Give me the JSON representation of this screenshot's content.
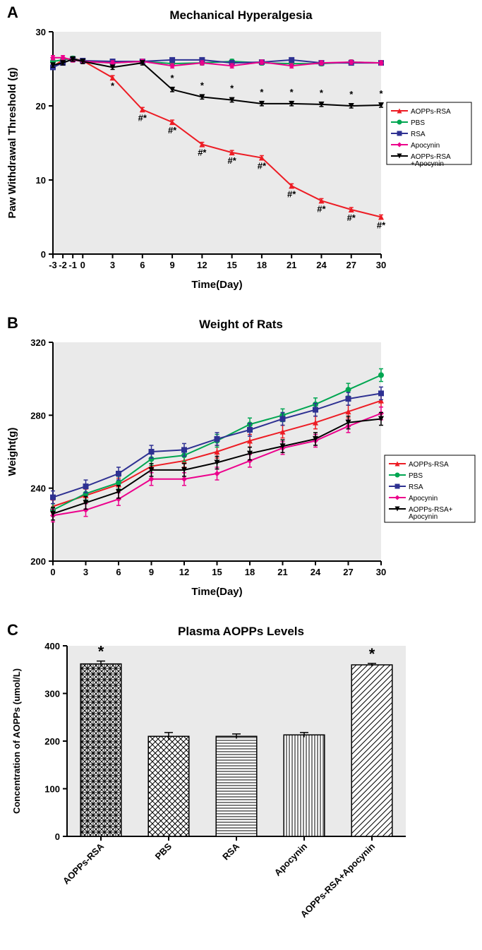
{
  "charts": {
    "A": {
      "label": "A",
      "title": "Mechanical Hyperalgesia",
      "type": "line",
      "xlabel": "Time(Day)",
      "ylabel": "Paw Withdrawal Threshold (g)",
      "xlim": [
        -3,
        30
      ],
      "ylim": [
        0,
        30
      ],
      "xticks": [
        -3,
        -2,
        -1,
        0,
        3,
        6,
        9,
        12,
        15,
        18,
        21,
        24,
        27,
        30
      ],
      "yticks": [
        0,
        10,
        20,
        30
      ],
      "background": "#eaeaea",
      "font_family": "Arial",
      "title_fontsize": 17,
      "label_fontsize": 14,
      "tick_fontsize": 13,
      "series": [
        {
          "name": "AOPPs-RSA",
          "color": "#ed1c24",
          "marker": "triangle",
          "data": [
            [
              -3,
              25.3
            ],
            [
              -2,
              26.2
            ],
            [
              -1,
              26.4
            ],
            [
              0,
              26.1
            ],
            [
              3,
              23.8
            ],
            [
              6,
              19.5
            ],
            [
              9,
              17.8
            ],
            [
              12,
              14.8
            ],
            [
              15,
              13.7
            ],
            [
              18,
              13.0
            ],
            [
              21,
              9.2
            ],
            [
              24,
              7.2
            ],
            [
              27,
              6.0
            ],
            [
              30,
              5.0
            ]
          ],
          "annot": [
            "",
            "",
            "",
            "",
            "*",
            "#*",
            "#*",
            "#*",
            "#*",
            "#*",
            "#*",
            "#*",
            "#*",
            "#*"
          ]
        },
        {
          "name": "PBS",
          "color": "#00a651",
          "marker": "circle",
          "data": [
            [
              -3,
              26.0
            ],
            [
              -2,
              26.2
            ],
            [
              -1,
              26.4
            ],
            [
              0,
              26.0
            ],
            [
              3,
              25.8
            ],
            [
              6,
              26.0
            ],
            [
              9,
              25.7
            ],
            [
              12,
              25.8
            ],
            [
              15,
              26.0
            ],
            [
              18,
              25.8
            ],
            [
              21,
              25.7
            ],
            [
              24,
              25.7
            ],
            [
              27,
              25.9
            ],
            [
              30,
              25.8
            ]
          ]
        },
        {
          "name": "RSA",
          "color": "#2e3192",
          "marker": "square",
          "data": [
            [
              -3,
              25.2
            ],
            [
              -2,
              25.8
            ],
            [
              -1,
              26.3
            ],
            [
              0,
              26.1
            ],
            [
              3,
              26.0
            ],
            [
              6,
              26.0
            ],
            [
              9,
              26.2
            ],
            [
              12,
              26.2
            ],
            [
              15,
              25.8
            ],
            [
              18,
              25.9
            ],
            [
              21,
              26.2
            ],
            [
              24,
              25.8
            ],
            [
              27,
              25.8
            ],
            [
              30,
              25.8
            ]
          ]
        },
        {
          "name": "Apocynin",
          "color": "#ec008c",
          "marker": "diamond",
          "data": [
            [
              -3,
              26.5
            ],
            [
              -2,
              26.5
            ],
            [
              -1,
              26.2
            ],
            [
              0,
              26.0
            ],
            [
              3,
              25.8
            ],
            [
              6,
              26.0
            ],
            [
              9,
              25.4
            ],
            [
              12,
              25.8
            ],
            [
              15,
              25.4
            ],
            [
              18,
              25.9
            ],
            [
              21,
              25.4
            ],
            [
              24,
              25.8
            ],
            [
              27,
              25.9
            ],
            [
              30,
              25.8
            ]
          ]
        },
        {
          "name": "AOPPs-RSA+Apocynin",
          "color": "#000000",
          "marker": "triangle-down",
          "data": [
            [
              -3,
              25.5
            ],
            [
              -2,
              25.8
            ],
            [
              -1,
              26.3
            ],
            [
              0,
              26.0
            ],
            [
              3,
              25.2
            ],
            [
              6,
              25.8
            ],
            [
              9,
              22.2
            ],
            [
              12,
              21.2
            ],
            [
              15,
              20.8
            ],
            [
              18,
              20.3
            ],
            [
              21,
              20.3
            ],
            [
              24,
              20.2
            ],
            [
              27,
              20.0
            ],
            [
              30,
              20.1
            ]
          ],
          "annot": [
            "",
            "",
            "",
            "",
            "",
            "",
            "*",
            "*",
            "*",
            "*",
            "*",
            "*",
            "*",
            "*"
          ]
        }
      ],
      "legend_pos": "right"
    },
    "B": {
      "label": "B",
      "title": "Weight of Rats",
      "type": "line",
      "xlabel": "Time(Day)",
      "ylabel": "Weight(g)",
      "xlim": [
        0,
        30
      ],
      "ylim": [
        200,
        320
      ],
      "xticks": [
        0,
        3,
        6,
        9,
        12,
        15,
        18,
        21,
        24,
        27,
        30
      ],
      "yticks": [
        200,
        240,
        280,
        320
      ],
      "background": "#eaeaea",
      "series": [
        {
          "name": "AOPPs-RSA",
          "color": "#ed1c24",
          "marker": "triangle",
          "data": [
            [
              0,
              230
            ],
            [
              3,
              236
            ],
            [
              6,
              242
            ],
            [
              9,
              252
            ],
            [
              12,
              255
            ],
            [
              15,
              260
            ],
            [
              18,
              266
            ],
            [
              21,
              271
            ],
            [
              24,
              276
            ],
            [
              27,
              282
            ],
            [
              30,
              288
            ]
          ]
        },
        {
          "name": "PBS",
          "color": "#00a651",
          "marker": "circle",
          "data": [
            [
              0,
              228
            ],
            [
              3,
              237
            ],
            [
              6,
              243
            ],
            [
              9,
              256
            ],
            [
              12,
              258
            ],
            [
              15,
              266
            ],
            [
              18,
              275
            ],
            [
              21,
              280
            ],
            [
              24,
              286
            ],
            [
              27,
              294
            ],
            [
              30,
              302
            ]
          ]
        },
        {
          "name": "RSA",
          "color": "#2e3192",
          "marker": "square",
          "data": [
            [
              0,
              235
            ],
            [
              3,
              241
            ],
            [
              6,
              248
            ],
            [
              9,
              260
            ],
            [
              12,
              261
            ],
            [
              15,
              267
            ],
            [
              18,
              272
            ],
            [
              21,
              278
            ],
            [
              24,
              283
            ],
            [
              27,
              289
            ],
            [
              30,
              292
            ]
          ]
        },
        {
          "name": "Apocynin",
          "color": "#ec008c",
          "marker": "diamond",
          "data": [
            [
              0,
              225
            ],
            [
              3,
              228
            ],
            [
              6,
              234
            ],
            [
              9,
              245
            ],
            [
              12,
              245
            ],
            [
              15,
              248
            ],
            [
              18,
              255
            ],
            [
              21,
              262
            ],
            [
              24,
              266
            ],
            [
              27,
              274
            ],
            [
              30,
              281
            ]
          ]
        },
        {
          "name": "AOPPs-RSA+Apocynin",
          "color": "#000000",
          "marker": "triangle-down",
          "data": [
            [
              0,
              226
            ],
            [
              3,
              232
            ],
            [
              6,
              238
            ],
            [
              9,
              250
            ],
            [
              12,
              250
            ],
            [
              15,
              254
            ],
            [
              18,
              259
            ],
            [
              21,
              263
            ],
            [
              24,
              267
            ],
            [
              27,
              276
            ],
            [
              30,
              278
            ]
          ]
        }
      ]
    },
    "C": {
      "label": "C",
      "title": "Plasma AOPPs Levels",
      "type": "bar",
      "ylabel": "Concentration of AOPPs (umol/L)",
      "ylim": [
        0,
        400
      ],
      "yticks": [
        0,
        100,
        200,
        300,
        400
      ],
      "background": "#eaeaea",
      "categories": [
        "AOPPs-RSA",
        "PBS",
        "RSA",
        "Apocynin",
        "AOPPs-RSA+Apocynin"
      ],
      "values": [
        362,
        210,
        210,
        213,
        360
      ],
      "errors": [
        6,
        8,
        5,
        5,
        3
      ],
      "sig": [
        "*",
        "",
        "",
        "",
        "*"
      ],
      "patterns": [
        "crosshatch",
        "check",
        "hstripe",
        "vstripe",
        "diag"
      ],
      "bar_fill": "#ffffff",
      "bar_stroke": "#000000",
      "bar_width": 0.6
    }
  }
}
